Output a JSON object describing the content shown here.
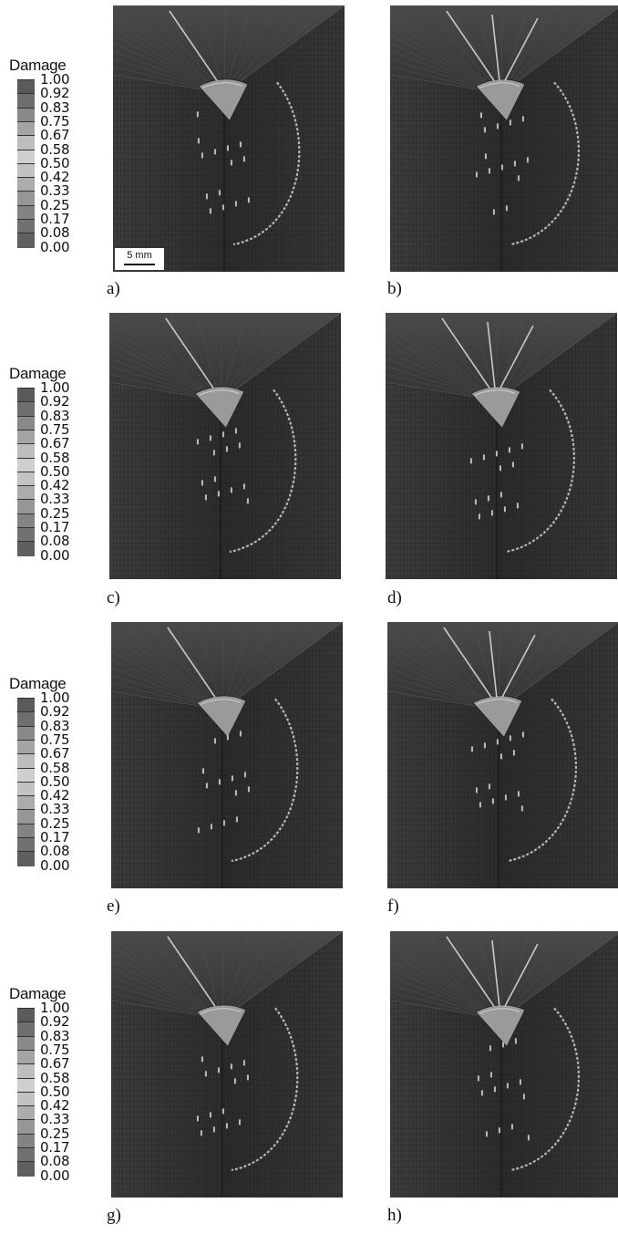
{
  "legend": {
    "title": "Damage",
    "ticks": [
      "1.00",
      "0.92",
      "0.83",
      "0.75",
      "0.67",
      "0.58",
      "0.50",
      "0.42",
      "0.33",
      "0.25",
      "0.17",
      "0.08",
      "0.00"
    ],
    "colors": [
      "#5a5a5a",
      "#6e6e6e",
      "#898989",
      "#a4a4a4",
      "#bdbdbd",
      "#cfcfcf",
      "#c2c2c2",
      "#acacac",
      "#969696",
      "#838383",
      "#717171",
      "#5f5f5f"
    ]
  },
  "panels": [
    {
      "label": "a)"
    },
    {
      "label": "b)"
    },
    {
      "label": "c)"
    },
    {
      "label": "d)"
    },
    {
      "label": "e)"
    },
    {
      "label": "f)"
    },
    {
      "label": "g)"
    },
    {
      "label": "h)"
    }
  ],
  "scalebar": {
    "label": "5 mm"
  }
}
